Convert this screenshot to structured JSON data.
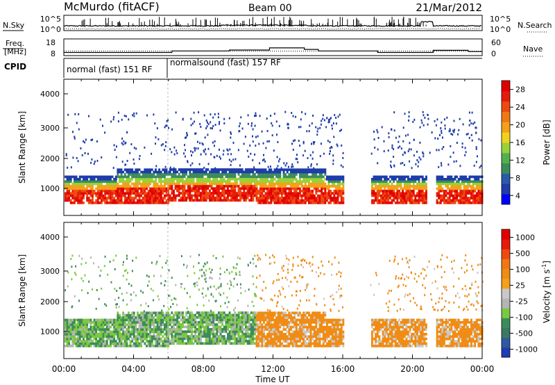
{
  "header": {
    "title": "McMurdo (fitACF)",
    "beam": "Beam 00",
    "date": "21/Mar/2012"
  },
  "summary_panels": {
    "nsky_label": "N.Sky",
    "nsearch_label": "N.Search",
    "nsky_ticks": [
      "10^5",
      "10^0"
    ],
    "nsearch_ticks": [
      "10^5",
      "10^0"
    ],
    "freq_label_line1": "Freq.",
    "freq_label_line2": "[MHz]",
    "freq_ticks": [
      "18",
      "8"
    ],
    "nave_label": "Nave",
    "nave_ticks": [
      "60",
      "0"
    ],
    "cpid_label": "CPID",
    "cpid_segments": [
      {
        "label": "normal (fast) 151 RF",
        "start_hour": 0,
        "end_hour": 6
      },
      {
        "label": "normalsound (fast) 157 RF",
        "start_hour": 6,
        "end_hour": 24
      }
    ]
  },
  "power_colorbar": {
    "label": "Power [dB]",
    "ticks": [
      "28",
      "24",
      "20",
      "16",
      "12",
      "8",
      "4"
    ],
    "colors": [
      "#0000ff",
      "#1e3caa",
      "#2a5aa8",
      "#3c8c5a",
      "#55b04c",
      "#9ad13a",
      "#f0d21e",
      "#f5a019",
      "#f07814",
      "#ee4a10",
      "#e81a0c",
      "#e00000"
    ]
  },
  "velocity_colorbar": {
    "label_main": "Velocity",
    "label_units": "[m s",
    "label_exp": "-1",
    "label_close": "]",
    "ticks": [
      "1000",
      "500",
      "100",
      "25",
      "-25",
      "-100",
      "-500",
      "-1000"
    ],
    "colors": [
      "#1e3cb4",
      "#2d5aa0",
      "#3c7864",
      "#3c8c5a",
      "#7cc840",
      "#b4b4b4",
      "#c8c8c8",
      "#f5a019",
      "#f08c14",
      "#f07814",
      "#ee4a10",
      "#e81a0c",
      "#e00000"
    ]
  },
  "chart_data": {
    "type": "heatmap",
    "xlabel": "Time UT",
    "x_ticks": [
      "00:00",
      "04:00",
      "08:00",
      "12:00",
      "16:00",
      "20:00",
      "00:00"
    ],
    "x_range_hours": [
      0,
      24
    ],
    "panels": [
      {
        "name": "Power",
        "ylabel": "Slant Range [km]",
        "y_ticks": [
          "4000",
          "3000",
          "2000",
          "1000"
        ],
        "ylim": [
          180,
          4500
        ],
        "value_range_db": [
          0,
          30
        ]
      },
      {
        "name": "Velocity",
        "ylabel": "Slant Range [km]",
        "y_ticks": [
          "4000",
          "3000",
          "2000",
          "1000"
        ],
        "ylim": [
          180,
          4500
        ],
        "value_range_ms": [
          -1000,
          1000
        ]
      }
    ],
    "freq_mhz_steps": [
      {
        "start_hour": 0,
        "end_hour": 6.2,
        "value": 9.6
      },
      {
        "start_hour": 6.2,
        "end_hour": 9.5,
        "value": 10.6
      },
      {
        "start_hour": 9.5,
        "end_hour": 11.8,
        "value": 11.2
      },
      {
        "start_hour": 11.8,
        "end_hour": 13.8,
        "value": 12.6
      },
      {
        "start_hour": 13.8,
        "end_hour": 14.6,
        "value": 11.6
      },
      {
        "start_hour": 14.6,
        "end_hour": 18.0,
        "value": 10.6
      },
      {
        "start_hour": 18.0,
        "end_hour": 21.2,
        "value": 9.6
      },
      {
        "start_hour": 21.2,
        "end_hour": 23.2,
        "value": 11.0
      },
      {
        "start_hour": 23.2,
        "end_hour": 24,
        "value": 10.2
      }
    ],
    "nave_level": 15
  }
}
